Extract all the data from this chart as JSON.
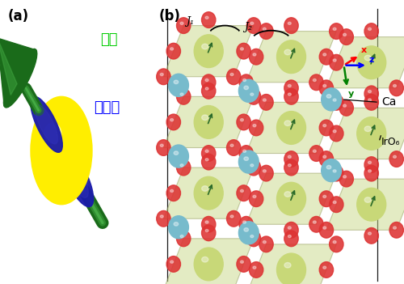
{
  "panel_a_label": "(a)",
  "panel_b_label": "(b)",
  "label_orbital": "軌道",
  "label_spin": "スピン",
  "label_orbital_color": "#00cc00",
  "label_spin_color": "#0000ff",
  "label_ca": "Ca",
  "label_iro6": "IrO₆",
  "label_j1": "J₁",
  "label_j2": "J₂",
  "label_x": "x",
  "label_y": "y",
  "label_z": "z",
  "color_green_dark": "#1a6b1a",
  "color_green_mid": "#2e8b2e",
  "color_green_light": "#44aa44",
  "color_blue_purple": "#1a1aaa",
  "color_blue_purple_mid": "#3333bb",
  "color_yellow": "#ffee00",
  "color_yellow_dark": "#ccbb00",
  "color_olive_light": "#c8d878",
  "color_olive_mid": "#a8b858",
  "color_olive_face": "#b8c868",
  "color_red_atom": "#dd3333",
  "color_red_light": "#ee6666",
  "color_cyan": "#77bbcc",
  "color_cyan_light": "#99ccdd",
  "color_cage": "#c8d888",
  "color_cage_edge": "#909858",
  "bg_color": "#ffffff"
}
